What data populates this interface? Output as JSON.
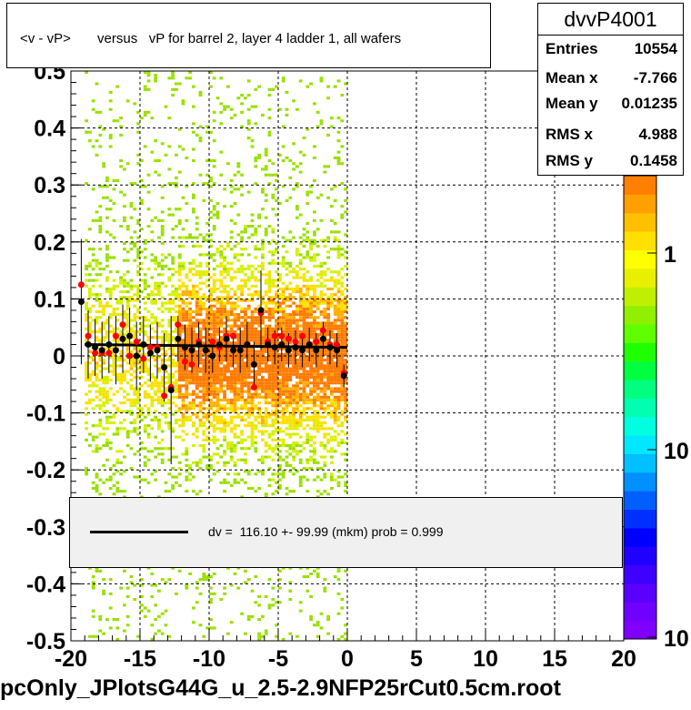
{
  "title": "<v - vP>       versus   vP for barrel 2, layer 4 ladder 1, all wafers",
  "stats": {
    "name": "dvvP4001",
    "rows": [
      {
        "label": "Entries",
        "value": "10554"
      },
      {
        "label": "Mean x",
        "value": "-7.766"
      },
      {
        "label": "Mean y",
        "value": "0.01235"
      },
      {
        "label": "RMS x",
        "value": "4.988"
      },
      {
        "label": "RMS y",
        "value": "0.1458"
      }
    ]
  },
  "legend": {
    "text": "dv =  116.10 +- 99.99 (mkm) prob = 0.999"
  },
  "footer": "pcOnly_JPlotsG44G_u_2.5-2.9NFP25rCut0.5cm.root",
  "colors": {
    "fit_line": "#000000",
    "points_black": "#000000",
    "points_red": "#ff0000",
    "legend_bg": "#f0f0f0"
  },
  "chart_data": {
    "type": "heatmap",
    "title": "<v - vP>       versus   vP for barrel 2, layer 4 ladder 1, all wafers",
    "xlim": [
      -20,
      20
    ],
    "ylim": [
      -0.5,
      0.5
    ],
    "x_ticks": [
      "-20",
      "-15",
      "-10",
      "-5",
      "0",
      "5",
      "10",
      "15",
      "20"
    ],
    "y_ticks": [
      "-0.5",
      "-0.4",
      "-0.3",
      "-0.2",
      "-0.1",
      "0",
      "0.1",
      "0.2",
      "0.3",
      "0.4",
      "0.5"
    ],
    "grid": true,
    "log_z": true,
    "z_ticks": [
      "1",
      "10",
      "10"
    ],
    "fill_region_x": [
      -19,
      0
    ],
    "fit_line": {
      "x": [
        -19,
        0
      ],
      "y": [
        0.02,
        0.015
      ]
    },
    "series": [
      {
        "name": "black",
        "x": [
          -19.25,
          -18.75,
          -18.25,
          -17.75,
          -17.25,
          -16.75,
          -16.25,
          -15.75,
          -15.25,
          -14.75,
          -14.25,
          -13.75,
          -13.25,
          -12.75,
          -12.25,
          -11.75,
          -11.25,
          -10.75,
          -10.25,
          -9.75,
          -9.25,
          -8.75,
          -8.25,
          -7.75,
          -7.25,
          -6.75,
          -6.25,
          -5.75,
          -5.25,
          -4.75,
          -4.25,
          -3.75,
          -3.25,
          -2.75,
          -2.25,
          -1.75,
          -1.25,
          -0.75,
          -0.25
        ],
        "y": [
          0.095,
          0.02,
          0.015,
          0.01,
          0.02,
          0.01,
          0.03,
          0.035,
          0.0,
          0.02,
          0.005,
          0.01,
          -0.02,
          -0.06,
          0.03,
          0.015,
          0.01,
          0.02,
          0.01,
          0.0,
          0.02,
          0.03,
          0.01,
          0.01,
          0.02,
          -0.015,
          0.08,
          0.02,
          0.015,
          0.02,
          0.01,
          0.015,
          0.01,
          0.02,
          0.01,
          0.03,
          0.015,
          0.01,
          -0.035
        ],
        "err": [
          0.11,
          0.06,
          0.05,
          0.05,
          0.05,
          0.06,
          0.06,
          0.05,
          0.06,
          0.05,
          0.05,
          0.05,
          0.06,
          0.13,
          0.04,
          0.04,
          0.04,
          0.04,
          0.04,
          0.03,
          0.03,
          0.04,
          0.03,
          0.04,
          0.04,
          0.04,
          0.07,
          0.03,
          0.03,
          0.03,
          0.03,
          0.03,
          0.03,
          0.03,
          0.03,
          0.03,
          0.03,
          0.03,
          0.02
        ]
      },
      {
        "name": "red",
        "x": [
          -19.25,
          -18.75,
          -18.25,
          -17.75,
          -17.25,
          -16.75,
          -16.25,
          -15.75,
          -15.25,
          -14.75,
          -14.25,
          -13.75,
          -13.25,
          -12.75,
          -12.25,
          -11.75,
          -11.25,
          -10.75,
          -10.25,
          -9.75,
          -9.25,
          -8.75,
          -8.25,
          -7.75,
          -7.25,
          -6.75,
          -6.25,
          -5.75,
          -5.25,
          -4.75,
          -4.25,
          -3.75,
          -3.25,
          -2.75,
          -2.25,
          -1.75,
          -1.25,
          -0.75,
          -0.25
        ],
        "y": [
          0.125,
          0.035,
          0.005,
          0.005,
          0.005,
          0.035,
          0.055,
          0.0,
          0.025,
          -0.005,
          0.015,
          0.015,
          -0.07,
          -0.055,
          0.055,
          -0.01,
          -0.015,
          0.025,
          0.01,
          0.025,
          0.015,
          0.035,
          0.035,
          0.01,
          0.02,
          -0.055,
          0.075,
          0.025,
          0.035,
          0.035,
          0.03,
          0.025,
          0.035,
          0.02,
          0.025,
          0.045,
          0.02,
          0.02,
          -0.03
        ]
      }
    ]
  }
}
